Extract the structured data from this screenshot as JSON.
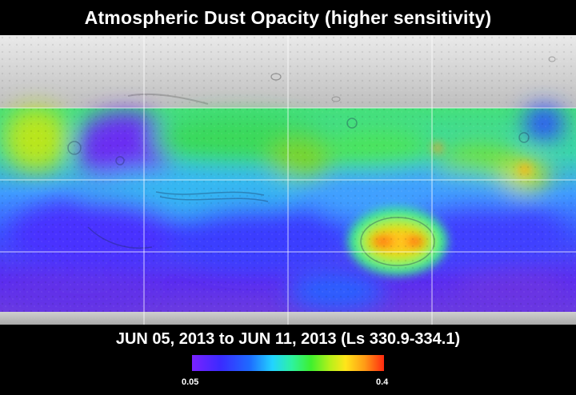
{
  "title": "Atmospheric Dust Opacity (higher sensitivity)",
  "date_range": "JUN 05, 2013 to JUN 11, 2013 (Ls 330.9-334.1)",
  "legend": {
    "min_label": "0.05",
    "max_label": "0.4",
    "colors": [
      "#7a22ff",
      "#3a2bff",
      "#1e6bff",
      "#22d4ff",
      "#2ef2a0",
      "#3ef02e",
      "#b8f01a",
      "#ffe51a",
      "#ff9a16",
      "#ff2a10"
    ]
  },
  "map": {
    "gridline_color": "#ffffff",
    "north_polar_color": "#cfcfcf",
    "south_polar_color": "#c9c9c9"
  }
}
